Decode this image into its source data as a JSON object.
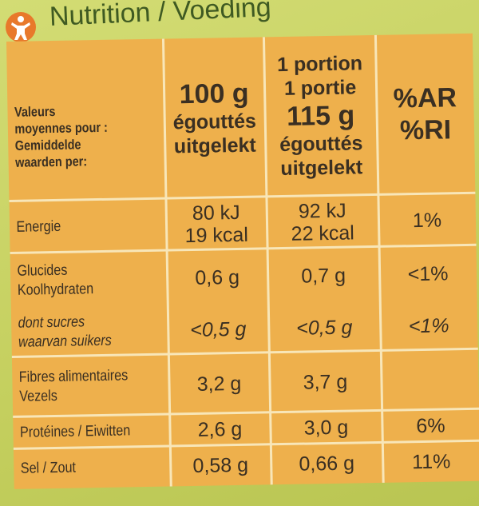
{
  "header": {
    "title": "Nutrition / Voeding"
  },
  "table": {
    "columns": [
      [
        "Valeurs",
        "moyennes pour :",
        "Gemiddelde",
        "waarden per:"
      ],
      [
        "100 g",
        "égouttés",
        "uitgelekt"
      ],
      [
        "1 portion",
        "1 portie",
        "115 g",
        "égouttés",
        "uitgelekt"
      ],
      [
        "%AR",
        "%RI"
      ]
    ],
    "rows": [
      {
        "label": [
          "Energie"
        ],
        "values": [
          [
            "80 kJ",
            "19 kcal"
          ],
          [
            "92 kJ",
            "22 kcal"
          ],
          [
            "1%"
          ]
        ]
      },
      {
        "label": [
          "Glucides",
          "Koolhydraten"
        ],
        "values": [
          [
            "0,6 g"
          ],
          [
            "0,7 g"
          ],
          [
            "<1%"
          ]
        ]
      },
      {
        "label": [
          "dont sucres",
          "waarvan suikers"
        ],
        "values": [
          [
            "<0,5 g"
          ],
          [
            "<0,5 g"
          ],
          [
            "<1%"
          ]
        ],
        "italic": true
      },
      {
        "label": [
          "Fibres alimentaires",
          "Vezels"
        ],
        "values": [
          [
            "3,2 g"
          ],
          [
            "3,7 g"
          ]
        ]
      },
      {
        "label": [
          "Protéines / Eiwitten"
        ],
        "values": [
          [
            "2,6 g"
          ],
          [
            "3,0 g"
          ],
          [
            "6%"
          ]
        ]
      },
      {
        "label": [
          "Sel / Zout"
        ],
        "values": [
          [
            "0,58 g"
          ],
          [
            "0,66 g"
          ],
          [
            "11%"
          ]
        ]
      }
    ]
  }
}
